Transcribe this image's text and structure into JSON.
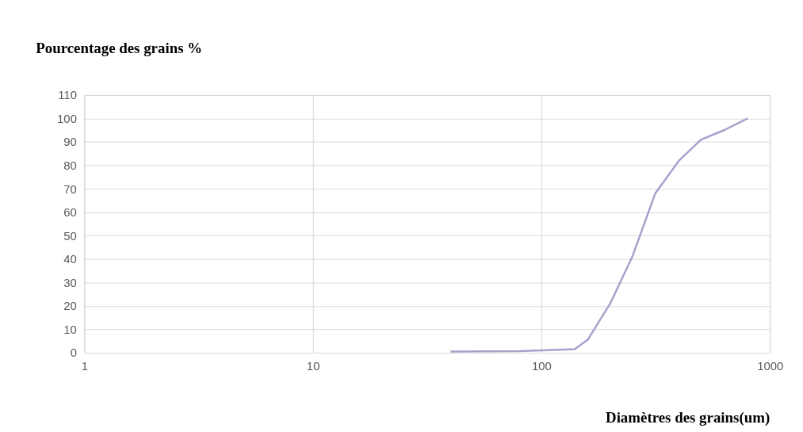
{
  "chart_data": {
    "type": "line",
    "ylabel": "Pourcentage des grains %",
    "xlabel": "Diamètres des grains(um)",
    "x": [
      40,
      80,
      100,
      140,
      160,
      200,
      250,
      315,
      400,
      500,
      630,
      800
    ],
    "series": [
      {
        "color": "#ab9fcc",
        "values": [
          0.5,
          0.7,
          1,
          1.5,
          5.7,
          21,
          41,
          68,
          82,
          91,
          95,
          100
        ]
      }
    ],
    "log": "x",
    "xlim": [
      1,
      1000
    ],
    "xticks": [
      1,
      10,
      100,
      1000
    ],
    "ylim": [
      0,
      110
    ],
    "yticks": [
      0,
      10,
      20,
      30,
      40,
      50,
      60,
      70,
      80,
      90,
      100,
      110
    ],
    "grid": true,
    "marker": "none",
    "line_style": "solid"
  }
}
